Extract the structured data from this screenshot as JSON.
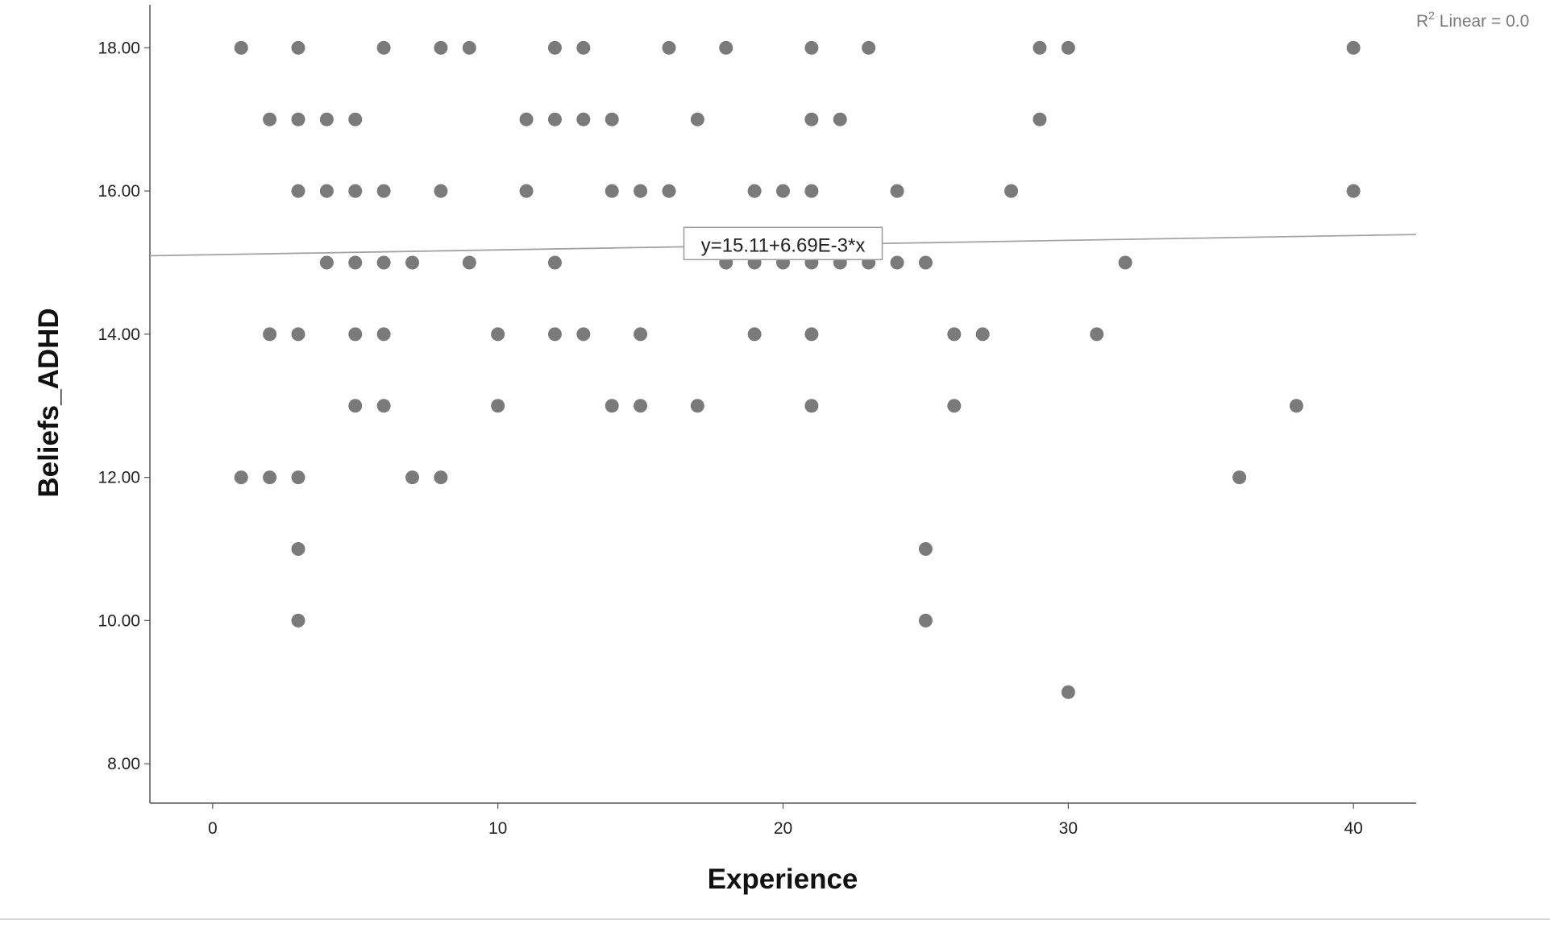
{
  "chart_data": {
    "type": "scatter",
    "xlabel": "Experience",
    "ylabel": "Beliefs_ADHD",
    "xlim": [
      -2.2,
      42.2
    ],
    "ylim": [
      7.45,
      18.6
    ],
    "x_ticks": [
      0,
      10,
      20,
      30,
      40
    ],
    "x_tick_labels": [
      "0",
      "10",
      "20",
      "30",
      "40"
    ],
    "y_ticks": [
      8,
      10,
      12,
      14,
      16,
      18
    ],
    "y_tick_labels": [
      "8.00",
      "10.00",
      "12.00",
      "14.00",
      "16.00",
      "18.00"
    ],
    "grid": false,
    "point_color": "#7a7a7a",
    "line_color": "#a3a3a3",
    "fit_line": {
      "intercept": 15.11,
      "slope": 0.00669,
      "label": "y=15.11+6.69E-3*x"
    },
    "r2_label": {
      "r": "R",
      "sup": "2",
      "text": " Linear = 0.0"
    },
    "points": [
      [
        1,
        18
      ],
      [
        3,
        18
      ],
      [
        6,
        18
      ],
      [
        8,
        18
      ],
      [
        9,
        18
      ],
      [
        12,
        18
      ],
      [
        13,
        18
      ],
      [
        16,
        18
      ],
      [
        18,
        18
      ],
      [
        21,
        18
      ],
      [
        23,
        18
      ],
      [
        29,
        18
      ],
      [
        30,
        18
      ],
      [
        40,
        18
      ],
      [
        2,
        17
      ],
      [
        3,
        17
      ],
      [
        4,
        17
      ],
      [
        5,
        17
      ],
      [
        11,
        17
      ],
      [
        12,
        17
      ],
      [
        13,
        17
      ],
      [
        14,
        17
      ],
      [
        17,
        17
      ],
      [
        21,
        17
      ],
      [
        22,
        17
      ],
      [
        29,
        17
      ],
      [
        3,
        16
      ],
      [
        4,
        16
      ],
      [
        5,
        16
      ],
      [
        6,
        16
      ],
      [
        8,
        16
      ],
      [
        11,
        16
      ],
      [
        14,
        16
      ],
      [
        15,
        16
      ],
      [
        16,
        16
      ],
      [
        19,
        16
      ],
      [
        20,
        16
      ],
      [
        21,
        16
      ],
      [
        24,
        16
      ],
      [
        28,
        16
      ],
      [
        40,
        16
      ],
      [
        4,
        15
      ],
      [
        5,
        15
      ],
      [
        6,
        15
      ],
      [
        7,
        15
      ],
      [
        9,
        15
      ],
      [
        12,
        15
      ],
      [
        18,
        15
      ],
      [
        19,
        15
      ],
      [
        20,
        15
      ],
      [
        21,
        15
      ],
      [
        22,
        15
      ],
      [
        23,
        15
      ],
      [
        24,
        15
      ],
      [
        25,
        15
      ],
      [
        32,
        15
      ],
      [
        2,
        14
      ],
      [
        3,
        14
      ],
      [
        5,
        14
      ],
      [
        6,
        14
      ],
      [
        10,
        14
      ],
      [
        12,
        14
      ],
      [
        13,
        14
      ],
      [
        15,
        14
      ],
      [
        19,
        14
      ],
      [
        21,
        14
      ],
      [
        26,
        14
      ],
      [
        27,
        14
      ],
      [
        31,
        14
      ],
      [
        5,
        13
      ],
      [
        6,
        13
      ],
      [
        10,
        13
      ],
      [
        14,
        13
      ],
      [
        15,
        13
      ],
      [
        17,
        13
      ],
      [
        21,
        13
      ],
      [
        26,
        13
      ],
      [
        38,
        13
      ],
      [
        1,
        12
      ],
      [
        2,
        12
      ],
      [
        3,
        12
      ],
      [
        7,
        12
      ],
      [
        8,
        12
      ],
      [
        36,
        12
      ],
      [
        3,
        11
      ],
      [
        25,
        11
      ],
      [
        3,
        10
      ],
      [
        25,
        10
      ],
      [
        30,
        9
      ]
    ]
  }
}
